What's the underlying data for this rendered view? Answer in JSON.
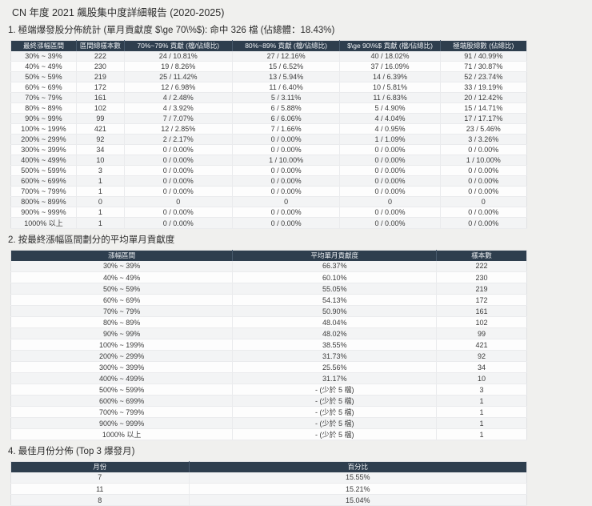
{
  "report": {
    "title": "CN 年度 2021 飆股集中度詳細報告 (2020-2025)"
  },
  "section1": {
    "heading": "1. 極端爆發股分佈統計 (單月貢獻度 $\\ge 70\\%$): 命中 326 檔 (佔總體：18.43%)",
    "table": {
      "columns": [
        "最終漲幅區間",
        "區間總樣本數",
        "70%~79% 貢獻 (檔/佔總比)",
        "80%~89% 貢獻 (檔/佔總比)",
        "$\\ge 90\\%$ 貢獻 (檔/佔總比)",
        "極端股總數 (佔總比)"
      ],
      "rows": [
        [
          "30% ~ 39%",
          "222",
          "24 / 10.81%",
          "27 / 12.16%",
          "40 / 18.02%",
          "91 / 40.99%"
        ],
        [
          "40% ~ 49%",
          "230",
          "19 / 8.26%",
          "15 / 6.52%",
          "37 / 16.09%",
          "71 / 30.87%"
        ],
        [
          "50% ~ 59%",
          "219",
          "25 / 11.42%",
          "13 / 5.94%",
          "14 / 6.39%",
          "52 / 23.74%"
        ],
        [
          "60% ~ 69%",
          "172",
          "12 / 6.98%",
          "11 / 6.40%",
          "10 / 5.81%",
          "33 / 19.19%"
        ],
        [
          "70% ~ 79%",
          "161",
          "4 / 2.48%",
          "5 / 3.11%",
          "11 / 6.83%",
          "20 / 12.42%"
        ],
        [
          "80% ~ 89%",
          "102",
          "4 / 3.92%",
          "6 / 5.88%",
          "5 / 4.90%",
          "15 / 14.71%"
        ],
        [
          "90% ~ 99%",
          "99",
          "7 / 7.07%",
          "6 / 6.06%",
          "4 / 4.04%",
          "17 / 17.17%"
        ],
        [
          "100% ~ 199%",
          "421",
          "12 / 2.85%",
          "7 / 1.66%",
          "4 / 0.95%",
          "23 / 5.46%"
        ],
        [
          "200% ~ 299%",
          "92",
          "2 / 2.17%",
          "0 / 0.00%",
          "1 / 1.09%",
          "3 / 3.26%"
        ],
        [
          "300% ~ 399%",
          "34",
          "0 / 0.00%",
          "0 / 0.00%",
          "0 / 0.00%",
          "0 / 0.00%"
        ],
        [
          "400% ~ 499%",
          "10",
          "0 / 0.00%",
          "1 / 10.00%",
          "0 / 0.00%",
          "1 / 10.00%"
        ],
        [
          "500% ~ 599%",
          "3",
          "0 / 0.00%",
          "0 / 0.00%",
          "0 / 0.00%",
          "0 / 0.00%"
        ],
        [
          "600% ~ 699%",
          "1",
          "0 / 0.00%",
          "0 / 0.00%",
          "0 / 0.00%",
          "0 / 0.00%"
        ],
        [
          "700% ~ 799%",
          "1",
          "0 / 0.00%",
          "0 / 0.00%",
          "0 / 0.00%",
          "0 / 0.00%"
        ],
        [
          "800% ~ 899%",
          "0",
          "0",
          "0",
          "0",
          "0"
        ],
        [
          "900% ~ 999%",
          "1",
          "0 / 0.00%",
          "0 / 0.00%",
          "0 / 0.00%",
          "0 / 0.00%"
        ],
        [
          "1000% 以上",
          "1",
          "0 / 0.00%",
          "0 / 0.00%",
          "0 / 0.00%",
          "0 / 0.00%"
        ]
      ]
    }
  },
  "section2": {
    "heading": "2. 按最終漲幅區間劃分的平均單月貢獻度",
    "table": {
      "columns": [
        "漲幅區間",
        "平均單月貢獻度",
        "樣本數"
      ],
      "rows": [
        [
          "30% ~ 39%",
          "66.37%",
          "222"
        ],
        [
          "40% ~ 49%",
          "60.10%",
          "230"
        ],
        [
          "50% ~ 59%",
          "55.05%",
          "219"
        ],
        [
          "60% ~ 69%",
          "54.13%",
          "172"
        ],
        [
          "70% ~ 79%",
          "50.90%",
          "161"
        ],
        [
          "80% ~ 89%",
          "48.04%",
          "102"
        ],
        [
          "90% ~ 99%",
          "48.02%",
          "99"
        ],
        [
          "100% ~ 199%",
          "38.55%",
          "421"
        ],
        [
          "200% ~ 299%",
          "31.73%",
          "92"
        ],
        [
          "300% ~ 399%",
          "25.56%",
          "34"
        ],
        [
          "400% ~ 499%",
          "31.17%",
          "10"
        ],
        [
          "500% ~ 599%",
          "- (少於 5 檔)",
          "3"
        ],
        [
          "600% ~ 699%",
          "- (少於 5 檔)",
          "1"
        ],
        [
          "700% ~ 799%",
          "- (少於 5 檔)",
          "1"
        ],
        [
          "900% ~ 999%",
          "- (少於 5 檔)",
          "1"
        ],
        [
          "1000% 以上",
          "- (少於 5 檔)",
          "1"
        ]
      ]
    }
  },
  "section4": {
    "heading": "4. 最佳月份分佈 (Top 3 爆發月)",
    "table": {
      "columns": [
        "月份",
        "百分比"
      ],
      "rows": [
        [
          "7",
          "15.55%"
        ],
        [
          "11",
          "15.21%"
        ],
        [
          "8",
          "15.04%"
        ]
      ]
    }
  },
  "colors": {
    "table_header_bg": "#2e3e4e",
    "table_header_text": "#eef1f4",
    "page_bg": "#f0f0ee",
    "row_stripe": "#f3f4f5",
    "row_plain": "#fdfdfd",
    "body_text": "#3b3b3b"
  }
}
